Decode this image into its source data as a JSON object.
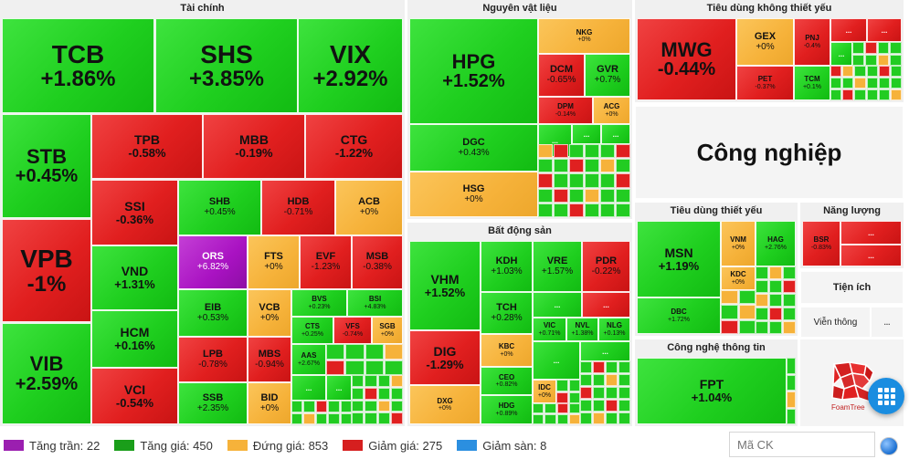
{
  "sectors": {
    "finance": {
      "title": "Tài chính"
    },
    "materials": {
      "title": "Nguyên vật liệu"
    },
    "discretionary": {
      "title": "Tiêu dùng không thiết yếu"
    },
    "industrial": {
      "title": "Công nghiệp"
    },
    "real_estate": {
      "title": "Bất động sản"
    },
    "staples": {
      "title": "Tiêu dùng thiết yếu"
    },
    "energy": {
      "title": "Năng lượng"
    },
    "utilities": {
      "title": "Tiện ích"
    },
    "telecom": {
      "title": "Viễn thông"
    },
    "tech": {
      "title": "Công nghệ thông tin"
    }
  },
  "stocks": {
    "TCB": {
      "sym": "TCB",
      "pct": "+1.86%"
    },
    "SHS": {
      "sym": "SHS",
      "pct": "+3.85%"
    },
    "VIX": {
      "sym": "VIX",
      "pct": "+2.92%"
    },
    "STB": {
      "sym": "STB",
      "pct": "+0.45%"
    },
    "TPB": {
      "sym": "TPB",
      "pct": "-0.58%"
    },
    "MBB": {
      "sym": "MBB",
      "pct": "-0.19%"
    },
    "CTG": {
      "sym": "CTG",
      "pct": "-1.22%"
    },
    "VPB": {
      "sym": "VPB",
      "pct": "-1%"
    },
    "SSI": {
      "sym": "SSI",
      "pct": "-0.36%"
    },
    "SHB": {
      "sym": "SHB",
      "pct": "+0.45%"
    },
    "HDB": {
      "sym": "HDB",
      "pct": "-0.71%"
    },
    "ACB": {
      "sym": "ACB",
      "pct": "+0%"
    },
    "VND": {
      "sym": "VND",
      "pct": "+1.31%"
    },
    "ORS": {
      "sym": "ORS",
      "pct": "+6.82%"
    },
    "FTS": {
      "sym": "FTS",
      "pct": "+0%"
    },
    "EVF": {
      "sym": "EVF",
      "pct": "-1.23%"
    },
    "MSB": {
      "sym": "MSB",
      "pct": "-0.38%"
    },
    "EIB": {
      "sym": "EIB",
      "pct": "+0.53%"
    },
    "VCB": {
      "sym": "VCB",
      "pct": "+0%"
    },
    "BVS": {
      "sym": "BVS",
      "pct": "+0.23%"
    },
    "BSI": {
      "sym": "BSI",
      "pct": "+4.83%"
    },
    "HCM": {
      "sym": "HCM",
      "pct": "+0.16%"
    },
    "CTS": {
      "sym": "CTS",
      "pct": "+0.25%"
    },
    "VFS": {
      "sym": "VFS",
      "pct": "-0.74%"
    },
    "SGB": {
      "sym": "SGB",
      "pct": "+0%"
    },
    "VIB": {
      "sym": "VIB",
      "pct": "+2.59%"
    },
    "LPB": {
      "sym": "LPB",
      "pct": "-0.78%"
    },
    "MBS": {
      "sym": "MBS",
      "pct": "-0.94%"
    },
    "AAS": {
      "sym": "AAS",
      "pct": "+2.67%"
    },
    "VCI": {
      "sym": "VCI",
      "pct": "-0.54%"
    },
    "SSB": {
      "sym": "SSB",
      "pct": "+2.35%"
    },
    "BID": {
      "sym": "BID",
      "pct": "+0%"
    },
    "HPG": {
      "sym": "HPG",
      "pct": "+1.52%"
    },
    "NKG": {
      "sym": "NKG",
      "pct": "+0%"
    },
    "DCM": {
      "sym": "DCM",
      "pct": "-0.65%"
    },
    "GVR": {
      "sym": "GVR",
      "pct": "+0.7%"
    },
    "DPM": {
      "sym": "DPM",
      "pct": "-0.14%"
    },
    "ACG": {
      "sym": "ACG",
      "pct": "+0%"
    },
    "DGC": {
      "sym": "DGC",
      "pct": "+0.43%"
    },
    "HSG": {
      "sym": "HSG",
      "pct": "+0%"
    },
    "MWG": {
      "sym": "MWG",
      "pct": "-0.44%"
    },
    "GEX": {
      "sym": "GEX",
      "pct": "+0%"
    },
    "PNJ": {
      "sym": "PNJ",
      "pct": "-0.4%"
    },
    "PET": {
      "sym": "PET",
      "pct": "-0.37%"
    },
    "TCM": {
      "sym": "TCM",
      "pct": "+0.1%"
    },
    "VHM": {
      "sym": "VHM",
      "pct": "+1.52%"
    },
    "KDH": {
      "sym": "KDH",
      "pct": "+1.03%"
    },
    "VRE": {
      "sym": "VRE",
      "pct": "+1.57%"
    },
    "PDR": {
      "sym": "PDR",
      "pct": "-0.22%"
    },
    "TCH": {
      "sym": "TCH",
      "pct": "+0.28%"
    },
    "DIG": {
      "sym": "DIG",
      "pct": "-1.29%"
    },
    "KBC": {
      "sym": "KBC",
      "pct": "+0%"
    },
    "VIC": {
      "sym": "VIC",
      "pct": "+0.71%"
    },
    "NVL": {
      "sym": "NVL",
      "pct": "+1.38%"
    },
    "NLG": {
      "sym": "NLG",
      "pct": "+0.13%"
    },
    "CEO": {
      "sym": "CEO",
      "pct": "+0.82%"
    },
    "IDC": {
      "sym": "IDC",
      "pct": "+0%"
    },
    "DXG": {
      "sym": "DXG",
      "pct": "+0%"
    },
    "HDG": {
      "sym": "HDG",
      "pct": "+0.89%"
    },
    "MSN": {
      "sym": "MSN",
      "pct": "+1.19%"
    },
    "VNM": {
      "sym": "VNM",
      "pct": "+0%"
    },
    "HAG": {
      "sym": "HAG",
      "pct": "+2.76%"
    },
    "KDC": {
      "sym": "KDC",
      "pct": "+0%"
    },
    "DBC": {
      "sym": "DBC",
      "pct": "+1.72%"
    },
    "BSR": {
      "sym": "BSR",
      "pct": "-0.83%"
    },
    "FPT": {
      "sym": "FPT",
      "pct": "+1.04%"
    }
  },
  "more_label": "...",
  "legend": {
    "ceiling": {
      "label": "Tăng trần: 22",
      "color": "#9b1fb0"
    },
    "up": {
      "label": "Tăng giá: 450",
      "color": "#1a9e1a"
    },
    "flat": {
      "label": "Đứng giá: 853",
      "color": "#f6b23a"
    },
    "down": {
      "label": "Giảm giá: 275",
      "color": "#d61f1f"
    },
    "floor": {
      "label": "Giảm sàn: 8",
      "color": "#2b8fe0"
    }
  },
  "search": {
    "placeholder": "Mã CK"
  },
  "foamtree_logo_text": "FoamTree",
  "colors": {
    "up": "#22cc22",
    "down": "#e02020",
    "flat": "#f6b23a",
    "ceiling": "#a912c2"
  }
}
